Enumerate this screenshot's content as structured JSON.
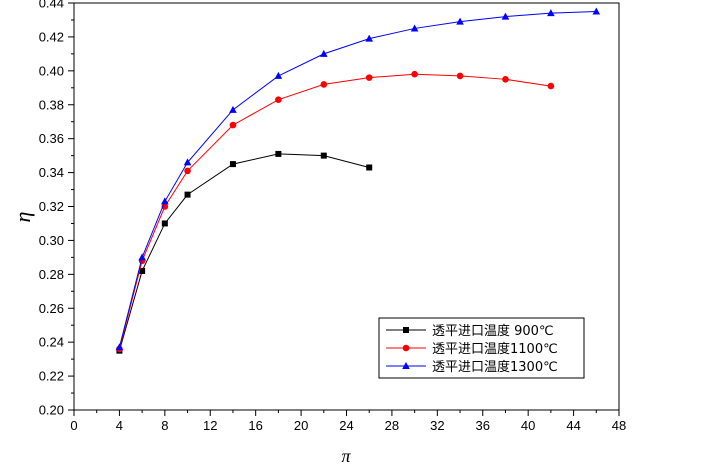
{
  "chart_data": {
    "type": "line",
    "title": "",
    "xlabel": "π",
    "ylabel": "η",
    "xlim": [
      0,
      48
    ],
    "ylim": [
      0.2,
      0.44
    ],
    "xticks": [
      "0",
      "4",
      "8",
      "12",
      "16",
      "20",
      "24",
      "28",
      "32",
      "36",
      "40",
      "44",
      "48"
    ],
    "yticks": [
      "0.20",
      "0.22",
      "0.24",
      "0.26",
      "0.28",
      "0.30",
      "0.32",
      "0.34",
      "0.36",
      "0.38",
      "0.40",
      "0.42",
      "0.44"
    ],
    "grid": false,
    "legend_position": "bottom-right",
    "series": [
      {
        "name": "透平进口温度 900℃",
        "color": "#000000",
        "marker": "square",
        "x": [
          4,
          6,
          8,
          10,
          14,
          18,
          22,
          26
        ],
        "y": [
          0.235,
          0.282,
          0.31,
          0.327,
          0.345,
          0.351,
          0.35,
          0.343
        ]
      },
      {
        "name": "透平进口温度1100℃",
        "color": "#ff0000",
        "marker": "circle",
        "x": [
          4,
          6,
          8,
          10,
          14,
          18,
          22,
          26,
          30,
          34,
          38,
          42
        ],
        "y": [
          0.236,
          0.288,
          0.32,
          0.341,
          0.368,
          0.383,
          0.392,
          0.396,
          0.398,
          0.397,
          0.395,
          0.391
        ]
      },
      {
        "name": "透平进口温度1300℃",
        "color": "#0000ff",
        "marker": "triangle",
        "x": [
          4,
          6,
          8,
          10,
          14,
          18,
          22,
          26,
          30,
          34,
          38,
          42,
          46
        ],
        "y": [
          0.237,
          0.29,
          0.323,
          0.346,
          0.377,
          0.397,
          0.41,
          0.419,
          0.425,
          0.429,
          0.432,
          0.434,
          0.435
        ]
      }
    ]
  }
}
